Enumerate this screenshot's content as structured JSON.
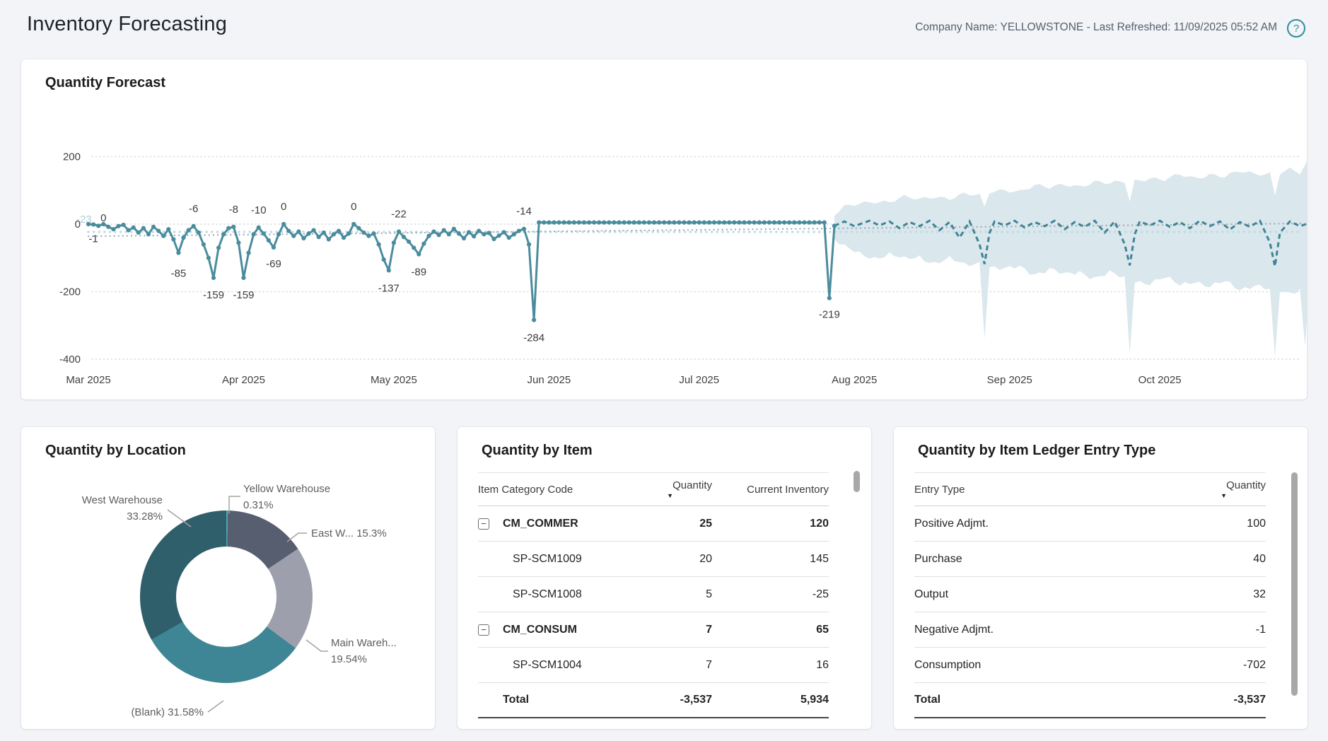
{
  "page": {
    "title": "Inventory Forecasting",
    "meta": "Company Name: YELLOWSTONE - Last Refreshed: 11/09/2025 05:52 AM",
    "help_glyph": "?"
  },
  "forecast_card": {
    "title": "Quantity Forecast"
  },
  "chart_data": {
    "type": "line",
    "title": "Quantity Forecast",
    "x_ticks": [
      "Mar 2025",
      "Apr 2025",
      "May 2025",
      "Jun 2025",
      "Jul 2025",
      "Aug 2025",
      "Sep 2025",
      "Oct 2025"
    ],
    "month_indices": [
      0,
      31,
      61,
      92,
      122,
      153,
      184,
      214
    ],
    "y_ticks": [
      200,
      0,
      -200,
      -400
    ],
    "ylim": [
      -430,
      260
    ],
    "grid": true,
    "legend": "none",
    "series_color": "#4A8C9D",
    "forecast_color": "#3F8496",
    "band_color": "#DAE7EC",
    "mean_line": {
      "label": "-23",
      "value": -23,
      "color": "#BInvalid",
      "line_color": "#BFDCE5",
      "label_color": "#AFCFDA"
    },
    "trend_line": {
      "start": -36,
      "end": 2,
      "color": "#9FABB8"
    },
    "history": [
      0,
      -1,
      -5,
      0,
      -8,
      -15,
      -6,
      -2,
      -18,
      -10,
      -25,
      -12,
      -30,
      -8,
      -20,
      -35,
      -15,
      -45,
      -85,
      -40,
      -18,
      -6,
      -25,
      -60,
      -100,
      -159,
      -70,
      -30,
      -12,
      -8,
      -55,
      -159,
      -85,
      -30,
      -10,
      -28,
      -48,
      -69,
      -30,
      0,
      -20,
      -35,
      -22,
      -42,
      -28,
      -18,
      -38,
      -25,
      -45,
      -30,
      -20,
      -40,
      -28,
      0,
      -12,
      -25,
      -35,
      -28,
      -60,
      -105,
      -137,
      -55,
      -22,
      -38,
      -52,
      -70,
      -89,
      -58,
      -35,
      -22,
      -32,
      -18,
      -30,
      -14,
      -28,
      -42,
      -24,
      -36,
      -20,
      -30,
      -26,
      -44,
      -34,
      -24,
      -40,
      -30,
      -20,
      -14,
      -60,
      -284,
      5,
      5,
      5,
      5,
      5,
      5,
      5,
      5,
      5,
      5,
      5,
      5,
      5,
      5,
      5,
      5,
      5,
      5,
      5,
      5,
      5,
      5,
      5,
      5,
      5,
      5,
      5,
      5,
      5,
      5,
      5,
      5,
      5,
      5,
      5,
      5,
      5,
      5,
      5,
      5,
      5,
      5,
      5,
      5,
      5,
      5,
      5,
      5,
      5,
      5,
      5,
      5,
      5,
      5,
      5,
      5,
      5,
      5,
      -219,
      -5
    ],
    "history_point_labels": [
      {
        "index": 1,
        "text": "-1",
        "dy": 25
      },
      {
        "index": 3,
        "text": "0",
        "dy": -4
      },
      {
        "index": 18,
        "text": "-85",
        "dy": 34
      },
      {
        "index": 21,
        "text": "-6",
        "dy": -20
      },
      {
        "index": 25,
        "text": "-159",
        "dy": 29
      },
      {
        "index": 29,
        "text": "-8",
        "dy": -20
      },
      {
        "index": 31,
        "text": "-159",
        "dy": 29
      },
      {
        "index": 34,
        "text": "-10",
        "dy": -20
      },
      {
        "index": 37,
        "text": "-69",
        "dy": 28
      },
      {
        "index": 39,
        "text": "0",
        "dy": -20
      },
      {
        "index": 53,
        "text": "0",
        "dy": -20
      },
      {
        "index": 60,
        "text": "-137",
        "dy": 30
      },
      {
        "index": 62,
        "text": "-22",
        "dy": -20
      },
      {
        "index": 66,
        "text": "-89",
        "dy": 30
      },
      {
        "index": 87,
        "text": "-14",
        "dy": -20
      },
      {
        "index": 89,
        "text": "-284",
        "dy": 30
      },
      {
        "index": 148,
        "text": "-219",
        "dy": 28
      }
    ],
    "forecast": {
      "start_index": 149,
      "end_index": 244,
      "mid_keypoints": [
        [
          149,
          -5
        ],
        [
          151,
          8
        ],
        [
          153,
          -6
        ],
        [
          156,
          10
        ],
        [
          158,
          -4
        ],
        [
          160,
          8
        ],
        [
          162,
          -12
        ],
        [
          164,
          6
        ],
        [
          166,
          -6
        ],
        [
          168,
          10
        ],
        [
          170,
          -18
        ],
        [
          172,
          6
        ],
        [
          174,
          -40
        ],
        [
          176,
          8
        ],
        [
          178,
          -60
        ],
        [
          179,
          -118
        ],
        [
          180,
          -25
        ],
        [
          181,
          8
        ],
        [
          183,
          -4
        ],
        [
          185,
          10
        ],
        [
          187,
          -10
        ],
        [
          189,
          6
        ],
        [
          191,
          -6
        ],
        [
          193,
          10
        ],
        [
          195,
          -15
        ],
        [
          197,
          6
        ],
        [
          199,
          -8
        ],
        [
          201,
          10
        ],
        [
          203,
          -25
        ],
        [
          205,
          8
        ],
        [
          207,
          -60
        ],
        [
          208,
          -122
        ],
        [
          209,
          -30
        ],
        [
          210,
          8
        ],
        [
          212,
          -4
        ],
        [
          214,
          10
        ],
        [
          216,
          -8
        ],
        [
          218,
          6
        ],
        [
          220,
          -12
        ],
        [
          222,
          10
        ],
        [
          224,
          -6
        ],
        [
          226,
          8
        ],
        [
          228,
          -16
        ],
        [
          230,
          6
        ],
        [
          232,
          -8
        ],
        [
          234,
          10
        ],
        [
          236,
          -55
        ],
        [
          237,
          -125
        ],
        [
          238,
          -25
        ],
        [
          240,
          8
        ],
        [
          242,
          -6
        ],
        [
          244,
          4
        ]
      ],
      "upper_keypoints": [
        [
          149,
          25
        ],
        [
          151,
          48
        ],
        [
          154,
          62
        ],
        [
          157,
          70
        ],
        [
          160,
          66
        ],
        [
          163,
          78
        ],
        [
          166,
          72
        ],
        [
          169,
          84
        ],
        [
          172,
          78
        ],
        [
          175,
          88
        ],
        [
          178,
          82
        ],
        [
          179,
          48
        ],
        [
          180,
          95
        ],
        [
          183,
          104
        ],
        [
          186,
          98
        ],
        [
          189,
          112
        ],
        [
          192,
          106
        ],
        [
          195,
          120
        ],
        [
          198,
          114
        ],
        [
          201,
          124
        ],
        [
          204,
          118
        ],
        [
          207,
          126
        ],
        [
          208,
          70
        ],
        [
          209,
          130
        ],
        [
          212,
          138
        ],
        [
          215,
          130
        ],
        [
          218,
          144
        ],
        [
          221,
          136
        ],
        [
          224,
          150
        ],
        [
          227,
          142
        ],
        [
          230,
          154
        ],
        [
          233,
          146
        ],
        [
          236,
          152
        ],
        [
          237,
          88
        ],
        [
          238,
          156
        ],
        [
          240,
          164
        ],
        [
          242,
          150
        ],
        [
          243,
          170
        ],
        [
          244,
          196
        ]
      ],
      "lower_keypoints": [
        [
          149,
          -45
        ],
        [
          151,
          -70
        ],
        [
          154,
          -88
        ],
        [
          157,
          -98
        ],
        [
          160,
          -90
        ],
        [
          163,
          -106
        ],
        [
          166,
          -96
        ],
        [
          169,
          -114
        ],
        [
          172,
          -104
        ],
        [
          175,
          -122
        ],
        [
          178,
          -112
        ],
        [
          179,
          -330
        ],
        [
          180,
          -126
        ],
        [
          183,
          -136
        ],
        [
          186,
          -126
        ],
        [
          189,
          -146
        ],
        [
          192,
          -134
        ],
        [
          195,
          -152
        ],
        [
          198,
          -140
        ],
        [
          201,
          -158
        ],
        [
          204,
          -146
        ],
        [
          207,
          -162
        ],
        [
          208,
          -385
        ],
        [
          209,
          -166
        ],
        [
          212,
          -174
        ],
        [
          215,
          -160
        ],
        [
          218,
          -180
        ],
        [
          221,
          -166
        ],
        [
          224,
          -186
        ],
        [
          227,
          -172
        ],
        [
          230,
          -192
        ],
        [
          233,
          -178
        ],
        [
          236,
          -196
        ],
        [
          237,
          -400
        ],
        [
          238,
          -200
        ],
        [
          240,
          -206
        ],
        [
          242,
          -188
        ],
        [
          243,
          -360
        ],
        [
          244,
          -150
        ]
      ]
    }
  },
  "location_card": {
    "title": "Quantity by Location",
    "chart_data": {
      "type": "donut",
      "segments": [
        {
          "name": "Yellow Warehouse",
          "pct": "0.31%",
          "value": 0.31,
          "color": "#4FA3B2"
        },
        {
          "name": "East W...",
          "pct": "15.3%",
          "value": 15.3,
          "color": "#565E70"
        },
        {
          "name": "Main Wareh...",
          "pct": "19.54%",
          "value": 19.54,
          "color": "#9DA0AC"
        },
        {
          "name": "(Blank)",
          "pct": "31.58%",
          "value": 31.58,
          "color": "#3E8695"
        },
        {
          "name": "West Warehouse",
          "pct": "33.28%",
          "value": 33.28,
          "color": "#2F5F6A"
        }
      ]
    }
  },
  "item_card": {
    "title": "Quantity by Item",
    "columns": [
      "Item Category Code",
      "Quantity",
      "Current Inventory"
    ],
    "sort_arrow": "▼",
    "collapse_glyph": "−",
    "rows": [
      {
        "code": "CM_COMMER",
        "quantity": "25",
        "inventory": "120",
        "group": true
      },
      {
        "code": "SP-SCM1009",
        "quantity": "20",
        "inventory": "145",
        "group": false
      },
      {
        "code": "SP-SCM1008",
        "quantity": "5",
        "inventory": "-25",
        "group": false
      },
      {
        "code": "CM_CONSUM",
        "quantity": "7",
        "inventory": "65",
        "group": true
      },
      {
        "code": "SP-SCM1004",
        "quantity": "7",
        "inventory": "16",
        "group": false
      }
    ],
    "total": {
      "label": "Total",
      "quantity": "-3,537",
      "inventory": "5,934"
    }
  },
  "ledger_card": {
    "title": "Quantity by Item Ledger Entry Type",
    "columns": [
      "Entry Type",
      "Quantity"
    ],
    "sort_arrow": "▼",
    "rows": [
      {
        "type": "Positive Adjmt.",
        "quantity": "100"
      },
      {
        "type": "Purchase",
        "quantity": "40"
      },
      {
        "type": "Output",
        "quantity": "32"
      },
      {
        "type": "Negative Adjmt.",
        "quantity": "-1"
      },
      {
        "type": "Consumption",
        "quantity": "-702"
      }
    ],
    "total": {
      "label": "Total",
      "quantity": "-3,537"
    }
  }
}
